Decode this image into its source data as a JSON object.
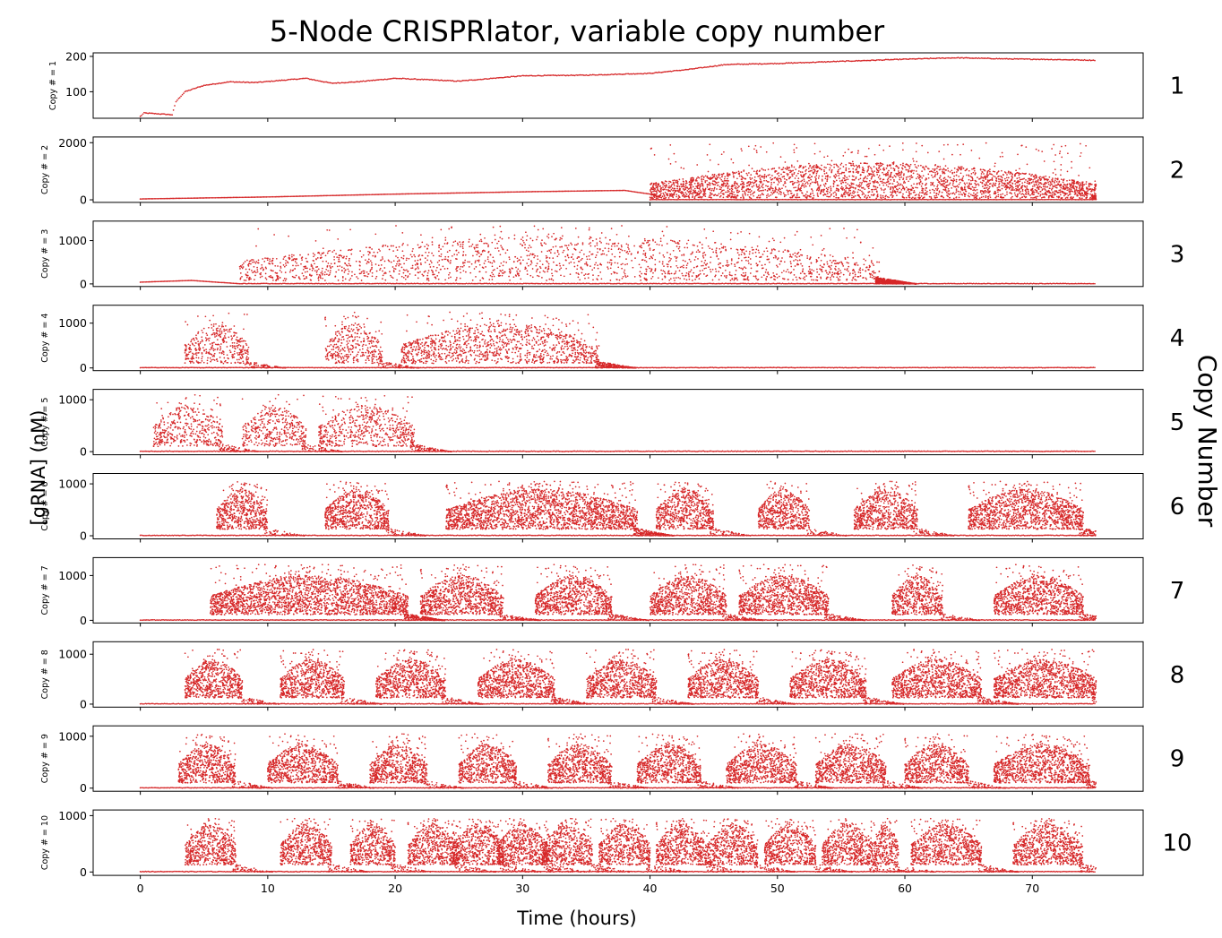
{
  "chart_data": {
    "type": "scatter",
    "title": "5-Node CRISPRlator, variable copy number",
    "xlabel": "Time (hours)",
    "ylabel": "[gRNA] (nM)",
    "right_label": "Copy Number",
    "xlim": [
      -3.7,
      78.7
    ],
    "xticks": [
      0,
      10,
      20,
      30,
      40,
      50,
      60,
      70
    ],
    "grid": false,
    "marker_color": "#d62728",
    "panels": [
      {
        "copy": 1,
        "side_label": "1",
        "panel_ylabel": "Copy # = 1",
        "ylim": [
          25,
          210
        ],
        "yticks": [
          100,
          200
        ],
        "pattern": "rise",
        "level_series": [
          [
            0,
            30
          ],
          [
            0.3,
            40
          ],
          [
            2.5,
            35
          ],
          [
            2.8,
            72
          ],
          [
            3.5,
            100
          ],
          [
            5,
            118
          ],
          [
            7,
            128
          ],
          [
            9,
            126
          ],
          [
            11,
            132
          ],
          [
            13,
            138
          ],
          [
            15,
            124
          ],
          [
            17,
            128
          ],
          [
            20,
            138
          ],
          [
            25,
            130
          ],
          [
            30,
            145
          ],
          [
            35,
            147
          ],
          [
            40,
            152
          ],
          [
            43,
            163
          ],
          [
            46,
            177
          ],
          [
            50,
            180
          ],
          [
            55,
            186
          ],
          [
            60,
            192
          ],
          [
            64,
            196
          ],
          [
            68,
            193
          ],
          [
            72,
            191
          ],
          [
            75,
            189
          ]
        ]
      },
      {
        "copy": 2,
        "side_label": "2",
        "panel_ylabel": "Copy # = 2",
        "ylim": [
          -90,
          2200
        ],
        "yticks": [
          0,
          2000
        ],
        "pattern": "baseline-then-burst",
        "baseline_series": [
          [
            0,
            30
          ],
          [
            10,
            100
          ],
          [
            20,
            200
          ],
          [
            30,
            280
          ],
          [
            38,
            330
          ],
          [
            40,
            200
          ],
          [
            41,
            60
          ]
        ],
        "cloud": {
          "t_start": 40,
          "t_end": 75,
          "band": [
            100,
            1300
          ],
          "max": 2000
        }
      },
      {
        "copy": 3,
        "side_label": "3",
        "panel_ylabel": "Copy # = 3",
        "ylim": [
          -60,
          1450
        ],
        "yticks": [
          0,
          1000
        ],
        "pattern": "burst",
        "cloud": {
          "t_start": 7.8,
          "t_end": 58,
          "band": [
            150,
            1100
          ],
          "max": 1350
        }
      },
      {
        "copy": 4,
        "side_label": "4",
        "panel_ylabel": "Copy # = 4",
        "ylim": [
          -60,
          1400
        ],
        "yticks": [
          0,
          1000
        ],
        "pattern": "clusters",
        "clusters": [
          [
            3.5,
            8.5
          ],
          [
            14.5,
            19
          ],
          [
            20.5,
            36
          ]
        ],
        "cloud": {
          "band": [
            200,
            1000
          ],
          "max": 1250
        }
      },
      {
        "copy": 5,
        "side_label": "5",
        "panel_ylabel": "Copy # = 5",
        "ylim": [
          -60,
          1200
        ],
        "yticks": [
          0,
          1000
        ],
        "pattern": "clusters",
        "clusters": [
          [
            1,
            6.5
          ],
          [
            8,
            13
          ],
          [
            14,
            21.5
          ]
        ],
        "cloud": {
          "band": [
            200,
            900
          ],
          "max": 1100
        }
      },
      {
        "copy": 6,
        "side_label": "6",
        "panel_ylabel": "Copy # = 6",
        "ylim": [
          -60,
          1200
        ],
        "yticks": [
          0,
          1000
        ],
        "pattern": "oscillation",
        "bursts": [
          [
            6,
            10
          ],
          [
            14.5,
            19.5
          ],
          [
            24,
            39
          ],
          [
            40.5,
            45
          ],
          [
            48.5,
            52.5
          ],
          [
            56,
            61
          ],
          [
            65,
            74
          ]
        ],
        "cloud": {
          "band": [
            250,
            900
          ],
          "max": 1050
        }
      },
      {
        "copy": 7,
        "side_label": "7",
        "panel_ylabel": "Copy # = 7",
        "ylim": [
          -60,
          1400
        ],
        "yticks": [
          0,
          1000
        ],
        "pattern": "oscillation",
        "bursts": [
          [
            5.5,
            21
          ],
          [
            22,
            28.5
          ],
          [
            31,
            37
          ],
          [
            40,
            46
          ],
          [
            47,
            54
          ],
          [
            59,
            63
          ],
          [
            67,
            74
          ]
        ],
        "cloud": {
          "band": [
            250,
            1000
          ],
          "max": 1250
        }
      },
      {
        "copy": 8,
        "side_label": "8",
        "panel_ylabel": "Copy # = 8",
        "ylim": [
          -60,
          1250
        ],
        "yticks": [
          0,
          1000
        ],
        "pattern": "oscillation",
        "bursts": [
          [
            3.5,
            8
          ],
          [
            11,
            16
          ],
          [
            18.5,
            24
          ],
          [
            26.5,
            32.5
          ],
          [
            35,
            40.5
          ],
          [
            43,
            48.5
          ],
          [
            51,
            57
          ],
          [
            59,
            66
          ],
          [
            67,
            75
          ]
        ],
        "cloud": {
          "band": [
            250,
            900
          ],
          "max": 1100
        }
      },
      {
        "copy": 9,
        "side_label": "9",
        "panel_ylabel": "Copy # = 9",
        "ylim": [
          -60,
          1200
        ],
        "yticks": [
          0,
          1000
        ],
        "pattern": "oscillation",
        "bursts": [
          [
            3,
            7.5
          ],
          [
            10,
            15.5
          ],
          [
            18,
            22.5
          ],
          [
            25,
            29.5
          ],
          [
            32,
            37
          ],
          [
            39,
            44
          ],
          [
            46,
            51.5
          ],
          [
            53,
            58.5
          ],
          [
            60,
            65
          ],
          [
            67,
            74.5
          ]
        ],
        "cloud": {
          "band": [
            200,
            850
          ],
          "max": 1050
        }
      },
      {
        "copy": 10,
        "side_label": "10",
        "panel_ylabel": "Copy # = 10",
        "ylim": [
          -60,
          1100
        ],
        "yticks": [
          0,
          1000
        ],
        "pattern": "oscillation",
        "bursts": [
          [
            3.5,
            7.5
          ],
          [
            11,
            15
          ],
          [
            16.5,
            20
          ],
          [
            21,
            25
          ],
          [
            24.5,
            28.5
          ],
          [
            28,
            32
          ],
          [
            31.5,
            35.5
          ],
          [
            36,
            40
          ],
          [
            40.5,
            44.5
          ],
          [
            44.5,
            48.5
          ],
          [
            49,
            53
          ],
          [
            53.5,
            57.5
          ],
          [
            57.5,
            59.5
          ],
          [
            60.5,
            66
          ],
          [
            68.5,
            74
          ]
        ],
        "cloud": {
          "band": [
            250,
            850
          ],
          "max": 950
        }
      }
    ]
  }
}
